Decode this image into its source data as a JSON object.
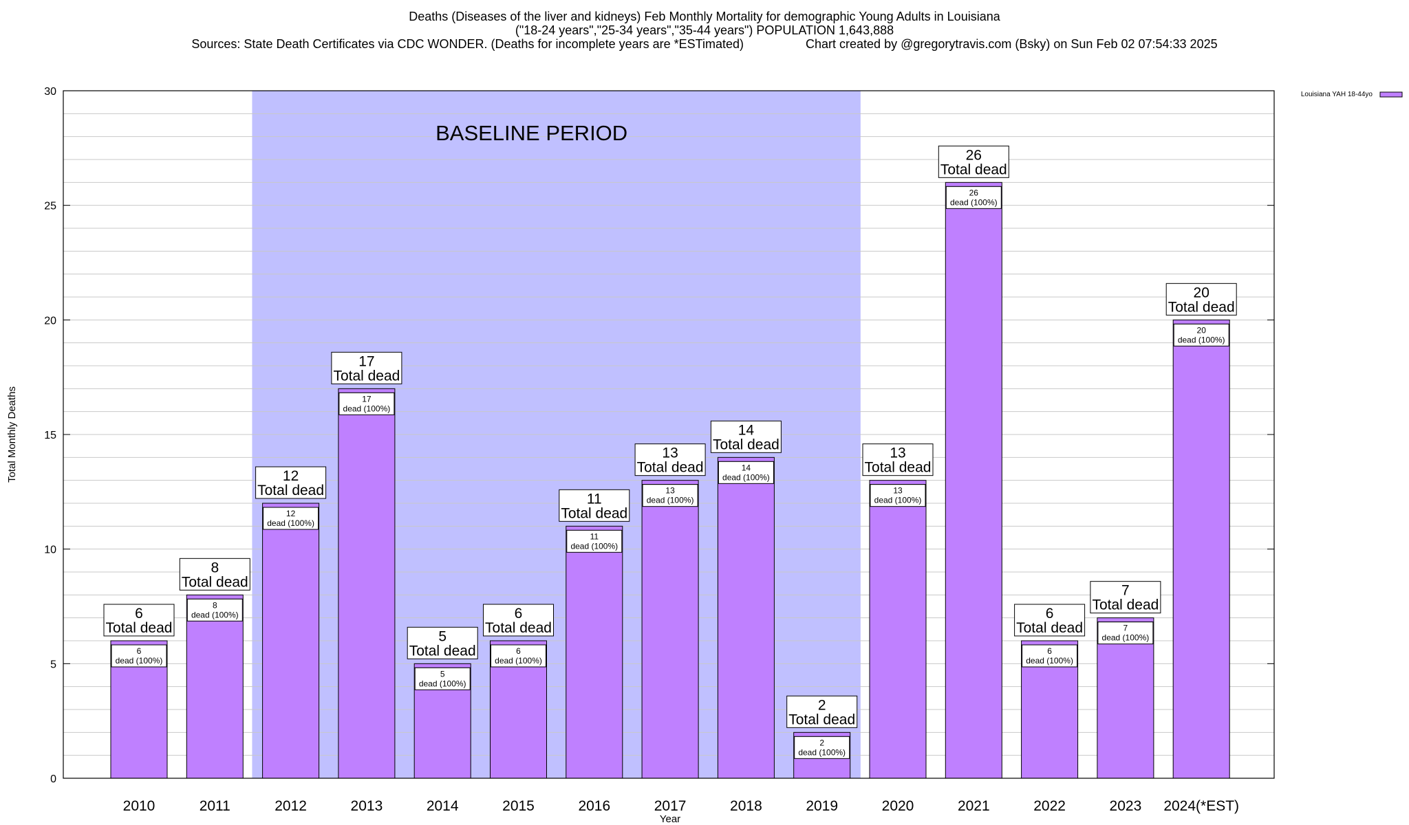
{
  "title_lines": [
    "Deaths (Diseases of the liver and kidneys) Feb Monthly Mortality for demographic Young Adults in Louisiana",
    "(\"18-24 years\",\"25-34 years\",\"35-44 years\") POPULATION 1,643,888",
    "Sources: State Death Certificates via CDC WONDER. (Deaths for incomplete years are *ESTimated)                  Chart created by @gregorytravis.com (Bsky) on Sun Feb 02 07:54:33 2025"
  ],
  "colors": {
    "bar": "#bf80ff",
    "baseline_band": "#c0c0ff",
    "grid": "#c8c8c8"
  },
  "chart_data": {
    "type": "bar",
    "title": "Deaths (Diseases of the liver and kidneys) Feb Monthly Mortality for demographic Young Adults in Louisiana",
    "xlabel": "Year",
    "ylabel": "Total Monthly Deaths",
    "ylim": [
      0,
      30
    ],
    "yticks": [
      0,
      5,
      10,
      15,
      20,
      25,
      30
    ],
    "y_minor_step": 1,
    "categories": [
      "2010",
      "2011",
      "2012",
      "2013",
      "2014",
      "2015",
      "2016",
      "2017",
      "2018",
      "2019",
      "2020",
      "2021",
      "2022",
      "2023",
      "2024(*EST)"
    ],
    "series": [
      {
        "name": "Louisiana YAH 18-44yo",
        "values": [
          6,
          8,
          12,
          17,
          5,
          6,
          11,
          13,
          14,
          2,
          13,
          26,
          6,
          7,
          20
        ]
      }
    ],
    "total_label_suffix": "Total dead",
    "inner_label_suffix": "dead (100%)",
    "baseline": {
      "label": "BASELINE PERIOD",
      "start": "2012",
      "end": "2019"
    },
    "legend": {
      "entry": "Louisiana YAH 18-44yo",
      "position": "top-right, outside plot"
    }
  }
}
